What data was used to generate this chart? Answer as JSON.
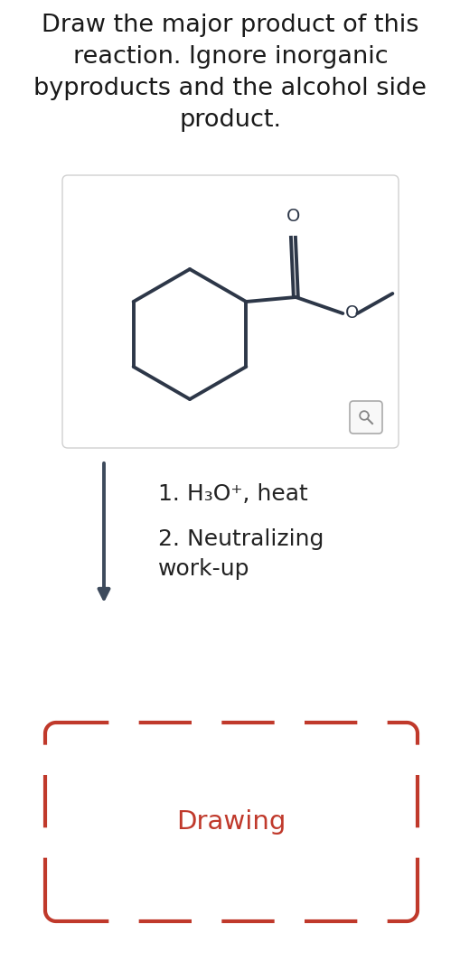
{
  "background_color": "#ffffff",
  "title_text": "Draw the major product of this\nreaction. Ignore inorganic\nbyproducts and the alcohol side\nproduct.",
  "title_fontsize": 19.5,
  "title_color": "#1a1a1a",
  "step1_text": "1. H₃O⁺, heat",
  "step2_text": "2. Neutralizing\nwork-up",
  "step_fontsize": 18,
  "step_color": "#222222",
  "drawing_text": "Drawing",
  "drawing_fontsize": 21,
  "drawing_color": "#c0392b",
  "box_edge_color": "#d0d0d0",
  "dashed_color": "#c0392b",
  "arrow_color": "#3d4a5c",
  "molecule_color": "#2d3748",
  "molecule_linewidth": 2.8,
  "mag_icon_color": "#aaaaaa",
  "mag_icon_fg": "#888888"
}
